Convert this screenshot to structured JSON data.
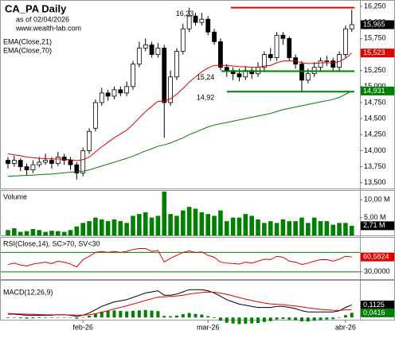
{
  "chart_data": [
    {
      "type": "candlestick",
      "title": "CA_PA Daily",
      "subtitle": "as of 02/04/2026",
      "source": "www.wealth-lab.com",
      "categories": [
        null,
        null,
        null,
        null,
        null,
        null,
        null,
        null,
        null,
        null,
        null,
        null,
        "feb-26",
        null,
        null,
        null,
        null,
        null,
        null,
        null,
        null,
        null,
        null,
        null,
        null,
        null,
        null,
        null,
        null,
        null,
        null,
        null,
        "mar-26",
        null,
        null,
        null,
        null,
        null,
        null,
        null,
        null,
        null,
        null,
        null,
        null,
        null,
        null,
        null,
        null,
        null,
        null,
        null,
        null,
        null,
        "abr-26",
        null
      ],
      "open": [
        13850,
        13800,
        13850,
        13750,
        13700,
        13780,
        13820,
        13850,
        13800,
        13900,
        13850,
        13780,
        13650,
        14000,
        14350,
        14750,
        14900,
        14850,
        14950,
        14900,
        15000,
        15350,
        15600,
        15650,
        15500,
        15600,
        14750,
        15150,
        15550,
        15900,
        16100,
        16000,
        16050,
        15850,
        15700,
        15300,
        15250,
        15200,
        15150,
        15250,
        15200,
        15300,
        15500,
        15450,
        15800,
        15750,
        15450,
        15350,
        15100,
        15200,
        15300,
        15400,
        15400,
        15300,
        15500,
        15900
      ],
      "high": [
        13900,
        13920,
        13880,
        13800,
        13850,
        13900,
        13950,
        13900,
        13980,
        13950,
        13900,
        13820,
        14050,
        14350,
        14800,
        14980,
        14950,
        15000,
        15000,
        15080,
        15400,
        15700,
        15750,
        15700,
        15680,
        15650,
        15250,
        15600,
        15980,
        16230,
        16150,
        16150,
        16100,
        15900,
        15750,
        15350,
        15300,
        15280,
        15320,
        15300,
        15380,
        15550,
        15600,
        15850,
        15850,
        15780,
        15500,
        15400,
        15280,
        15380,
        15450,
        15480,
        15450,
        15550,
        15950,
        16200
      ],
      "low": [
        13720,
        13750,
        13680,
        13620,
        13650,
        13740,
        13780,
        13720,
        13760,
        13780,
        13700,
        13550,
        13600,
        13950,
        14300,
        14700,
        14780,
        14800,
        14850,
        14850,
        14950,
        15300,
        15550,
        15450,
        15450,
        14200,
        14700,
        15100,
        15500,
        15850,
        15950,
        15950,
        15800,
        15650,
        15250,
        15150,
        15100,
        15080,
        15100,
        15120,
        15150,
        15250,
        15400,
        15400,
        15650,
        15400,
        15280,
        14920,
        15050,
        15150,
        15250,
        15320,
        15250,
        15250,
        15450,
        15850
      ],
      "close": [
        13800,
        13850,
        13750,
        13700,
        13780,
        13820,
        13850,
        13800,
        13900,
        13850,
        13780,
        13650,
        14000,
        14300,
        14750,
        14900,
        14850,
        14950,
        14900,
        15000,
        15350,
        15600,
        15650,
        15500,
        15600,
        14750,
        15150,
        15550,
        15900,
        16100,
        16000,
        16050,
        15850,
        15700,
        15300,
        15250,
        15200,
        15150,
        15250,
        15200,
        15300,
        15500,
        15450,
        15800,
        15750,
        15450,
        15350,
        15100,
        15200,
        15300,
        15400,
        15400,
        15300,
        15500,
        15900,
        15965
      ],
      "up_color": "#ffffff",
      "down_color": "#000000",
      "series": [
        {
          "name": "EMA(Close,21)",
          "color": "#e00000",
          "values": [
            13950,
            13935,
            13920,
            13900,
            13890,
            13880,
            13875,
            13870,
            13870,
            13868,
            13860,
            13845,
            13860,
            13900,
            13980,
            14060,
            14130,
            14200,
            14260,
            14320,
            14410,
            14510,
            14610,
            14690,
            14770,
            14770,
            14810,
            14880,
            14970,
            15070,
            15150,
            15230,
            15290,
            15330,
            15330,
            15330,
            15320,
            15310,
            15310,
            15300,
            15300,
            15320,
            15330,
            15370,
            15400,
            15400,
            15400,
            15370,
            15360,
            15360,
            15370,
            15370,
            15370,
            15390,
            15440,
            15523
          ]
        },
        {
          "name": "EMA(Close,70)",
          "color": "#008000",
          "values": [
            13600,
            13605,
            13610,
            13615,
            13620,
            13625,
            13630,
            13635,
            13645,
            13655,
            13665,
            13670,
            13680,
            13700,
            13730,
            13760,
            13790,
            13820,
            13850,
            13880,
            13915,
            13955,
            13995,
            14030,
            14070,
            14090,
            14120,
            14160,
            14200,
            14250,
            14290,
            14330,
            14370,
            14400,
            14420,
            14440,
            14460,
            14480,
            14500,
            14520,
            14540,
            14560,
            14580,
            14610,
            14640,
            14660,
            14680,
            14700,
            14720,
            14740,
            14760,
            14780,
            14800,
            14830,
            14880,
            14931
          ]
        }
      ],
      "ylim": [
        13410,
        16350
      ],
      "yticks": [
        {
          "value": 16250,
          "label": "16,250"
        },
        {
          "value": 16000,
          "label": "16,000"
        },
        {
          "value": 15750,
          "label": "15,750"
        },
        {
          "value": 15500,
          "label": "15,500"
        },
        {
          "value": 15250,
          "label": "15,250"
        },
        {
          "value": 15000,
          "label": "15,000"
        },
        {
          "value": 14750,
          "label": "14,750"
        },
        {
          "value": 14500,
          "label": "14,500"
        },
        {
          "value": 14250,
          "label": "14,250"
        },
        {
          "value": 14000,
          "label": "14,000"
        },
        {
          "value": 13750,
          "label": "13,750"
        },
        {
          "value": 13500,
          "label": "13,500"
        }
      ],
      "annotations": [
        {
          "value": 16230,
          "label": "16,23",
          "color": "#e00000"
        },
        {
          "value": 15240,
          "label": "15,24",
          "color": "#008000"
        },
        {
          "value": 14920,
          "label": "14,92",
          "color": "#008000"
        }
      ],
      "last_labels": [
        {
          "value": 15965,
          "label": "15,965",
          "color": "#000000"
        },
        {
          "value": 15523,
          "label": "15,523",
          "color": "#e00000"
        },
        {
          "value": 14931,
          "label": "14,931",
          "color": "#008000"
        }
      ]
    },
    {
      "type": "bar",
      "title": "Volume",
      "color": "#008000",
      "values": [
        1.5,
        2.0,
        1.0,
        1.2,
        1.8,
        1.5,
        1.0,
        1.3,
        1.2,
        1.0,
        1.5,
        2.5,
        3.5,
        4.0,
        5.0,
        4.5,
        4.0,
        4.5,
        4.0,
        3.5,
        5.5,
        6.0,
        6.5,
        5.0,
        5.5,
        12.3,
        6.0,
        5.5,
        7.0,
        8.0,
        7.5,
        6.5,
        6.0,
        5.5,
        7.0,
        4.0,
        5.0,
        5.0,
        6.0,
        5.5,
        4.5,
        3.5,
        4.0,
        3.5,
        4.5,
        4.0,
        4.0,
        5.0,
        3.5,
        5.0,
        4.0,
        4.0,
        3.0,
        3.5,
        3.5,
        2.71
      ],
      "ylim": [
        0,
        12.5
      ],
      "yticks": [
        {
          "value": 10,
          "label": "10,00 M"
        },
        {
          "value": 5,
          "label": "5,00 M"
        }
      ],
      "last_labels": [
        {
          "value": 2.71,
          "label": "2,71 M",
          "color": "#000000"
        }
      ]
    },
    {
      "type": "line",
      "title": "RSI(Close,14), SC>70, SV<30",
      "color": "#e00000",
      "values": [
        45,
        48,
        44,
        42,
        46,
        48,
        50,
        47,
        52,
        50,
        46,
        40,
        55,
        62,
        70,
        72,
        70,
        72,
        70,
        72,
        76,
        78,
        78,
        72,
        74,
        50,
        58,
        64,
        70,
        73,
        70,
        71,
        64,
        60,
        50,
        48,
        47,
        46,
        50,
        48,
        52,
        56,
        55,
        62,
        60,
        52,
        50,
        45,
        48,
        52,
        55,
        55,
        52,
        56,
        62,
        60.5824
      ],
      "levels": [
        70,
        30
      ],
      "level_color": "#008000",
      "ylim": [
        15,
        100
      ],
      "yticks": [
        {
          "value": 30,
          "label": "30,0000"
        }
      ],
      "last_labels": [
        {
          "value": 60.5824,
          "label": "60,5824",
          "color": "#e00000"
        }
      ]
    },
    {
      "type": "macd",
      "title": "MACD(12,26,9)",
      "series": [
        {
          "color": "#000000",
          "values": [
            0.03,
            0.03,
            0.025,
            0.02,
            0.02,
            0.02,
            0.02,
            0.02,
            0.025,
            0.025,
            0.02,
            0.01,
            0.02,
            0.04,
            0.07,
            0.1,
            0.12,
            0.14,
            0.15,
            0.16,
            0.18,
            0.2,
            0.22,
            0.23,
            0.24,
            0.2,
            0.2,
            0.21,
            0.23,
            0.25,
            0.25,
            0.25,
            0.24,
            0.22,
            0.19,
            0.16,
            0.14,
            0.12,
            0.11,
            0.1,
            0.09,
            0.09,
            0.09,
            0.1,
            0.1,
            0.09,
            0.08,
            0.06,
            0.05,
            0.05,
            0.05,
            0.05,
            0.05,
            0.06,
            0.09,
            0.1125
          ]
        },
        {
          "color": "#e00000",
          "values": [
            0.035,
            0.034,
            0.032,
            0.03,
            0.028,
            0.026,
            0.025,
            0.024,
            0.024,
            0.024,
            0.023,
            0.021,
            0.021,
            0.025,
            0.034,
            0.047,
            0.061,
            0.077,
            0.091,
            0.105,
            0.12,
            0.136,
            0.153,
            0.168,
            0.183,
            0.186,
            0.189,
            0.193,
            0.2,
            0.21,
            0.218,
            0.224,
            0.228,
            0.226,
            0.219,
            0.207,
            0.194,
            0.179,
            0.165,
            0.152,
            0.14,
            0.13,
            0.122,
            0.118,
            0.114,
            0.109,
            0.103,
            0.095,
            0.086,
            0.079,
            0.073,
            0.068,
            0.065,
            0.064,
            0.069,
            0.0709
          ]
        }
      ],
      "histogram": {
        "color": "#008000",
        "values": [
          -0.005,
          -0.004,
          -0.007,
          -0.01,
          -0.008,
          -0.006,
          -0.005,
          -0.004,
          0.001,
          0.001,
          -0.003,
          -0.011,
          -0.001,
          0.015,
          0.036,
          0.053,
          0.059,
          0.063,
          0.059,
          0.055,
          0.06,
          0.064,
          0.067,
          0.062,
          0.057,
          0.014,
          0.011,
          0.017,
          0.03,
          0.04,
          0.032,
          0.026,
          0.012,
          -0.006,
          -0.029,
          -0.047,
          -0.054,
          -0.059,
          -0.055,
          -0.052,
          -0.05,
          -0.04,
          -0.032,
          -0.018,
          -0.014,
          -0.019,
          -0.023,
          -0.035,
          -0.036,
          -0.029,
          -0.023,
          -0.018,
          -0.015,
          -0.004,
          0.021,
          0.0416
        ]
      },
      "ylim": [
        -0.02,
        0.33
      ],
      "last_labels": [
        {
          "value": 0.1125,
          "label": "0,1125",
          "color": "#000000"
        },
        {
          "value": 0.0416,
          "label": "0,0416",
          "color": "#008000"
        }
      ]
    }
  ]
}
